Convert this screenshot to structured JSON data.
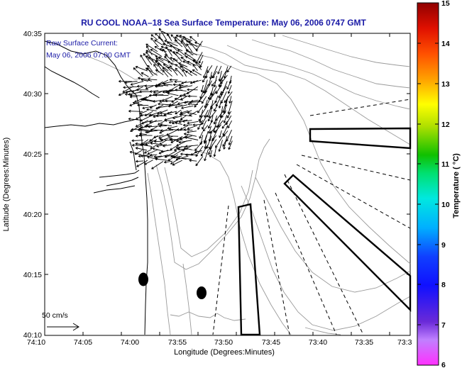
{
  "title": "RU COOL  NOAA–18  Sea Surface Temperature:  May 06, 2006 0747 GMT",
  "annotation_line1": "Raw Surface Current:",
  "annotation_line2": "May 06, 2006 07:00 GMT",
  "scale_label": "50 cm/s",
  "chart_data": {
    "type": "map",
    "xlabel": "Longitude (Degrees:Minutes)",
    "ylabel": "Latitude (Degrees:Minutes)",
    "x_ticks": [
      "74:10",
      "74:05",
      "74:00",
      "73:55",
      "73:50",
      "73:45",
      "73:40",
      "73:35",
      "73:3"
    ],
    "y_ticks": [
      "40:35",
      "40:30",
      "40:25",
      "40:20",
      "40:15",
      "40:10"
    ],
    "colorbar": {
      "label": "Temperature ( °C)",
      "ticks": [
        "15",
        "14",
        "13",
        "12",
        "11",
        "10",
        "9",
        "8",
        "7",
        "6"
      ],
      "range": [
        6,
        15
      ]
    },
    "markers": [
      "buoy",
      "buoy"
    ]
  },
  "colors": {
    "title": "#1a1aa6",
    "coast": "#000000",
    "bathymetry": "#9a9a9a"
  }
}
